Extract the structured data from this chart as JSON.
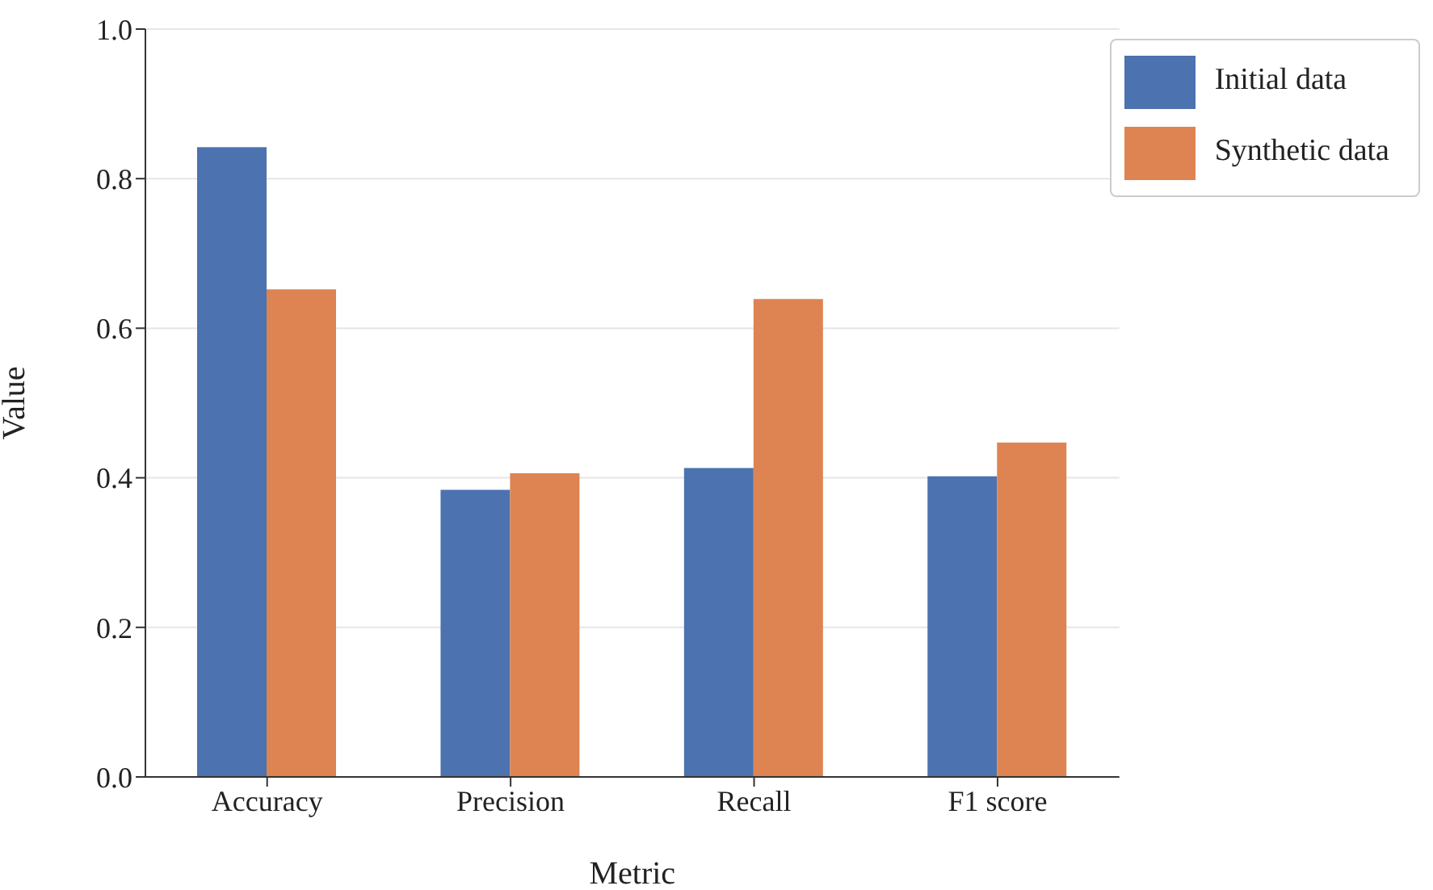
{
  "chart_data": {
    "type": "bar",
    "xlabel": "Metric",
    "ylabel": "Value",
    "categories": [
      "Accuracy",
      "Precision",
      "Recall",
      "F1 score"
    ],
    "series": [
      {
        "name": "Initial data",
        "color": "#4c72b0",
        "values": [
          0.842,
          0.384,
          0.413,
          0.402
        ]
      },
      {
        "name": "Synthetic data",
        "color": "#dd8452",
        "values": [
          0.652,
          0.406,
          0.639,
          0.447
        ]
      }
    ],
    "ylim": [
      0,
      1
    ],
    "yticks": [
      {
        "value": 0,
        "label": "0.0"
      },
      {
        "value": 0.2,
        "label": "0.2"
      },
      {
        "value": 0.4,
        "label": "0.4"
      },
      {
        "value": 0.6,
        "label": "0.6"
      },
      {
        "value": 0.8,
        "label": "0.8"
      },
      {
        "value": 1,
        "label": "1.0"
      }
    ],
    "grid": "y",
    "legend": "top right"
  }
}
